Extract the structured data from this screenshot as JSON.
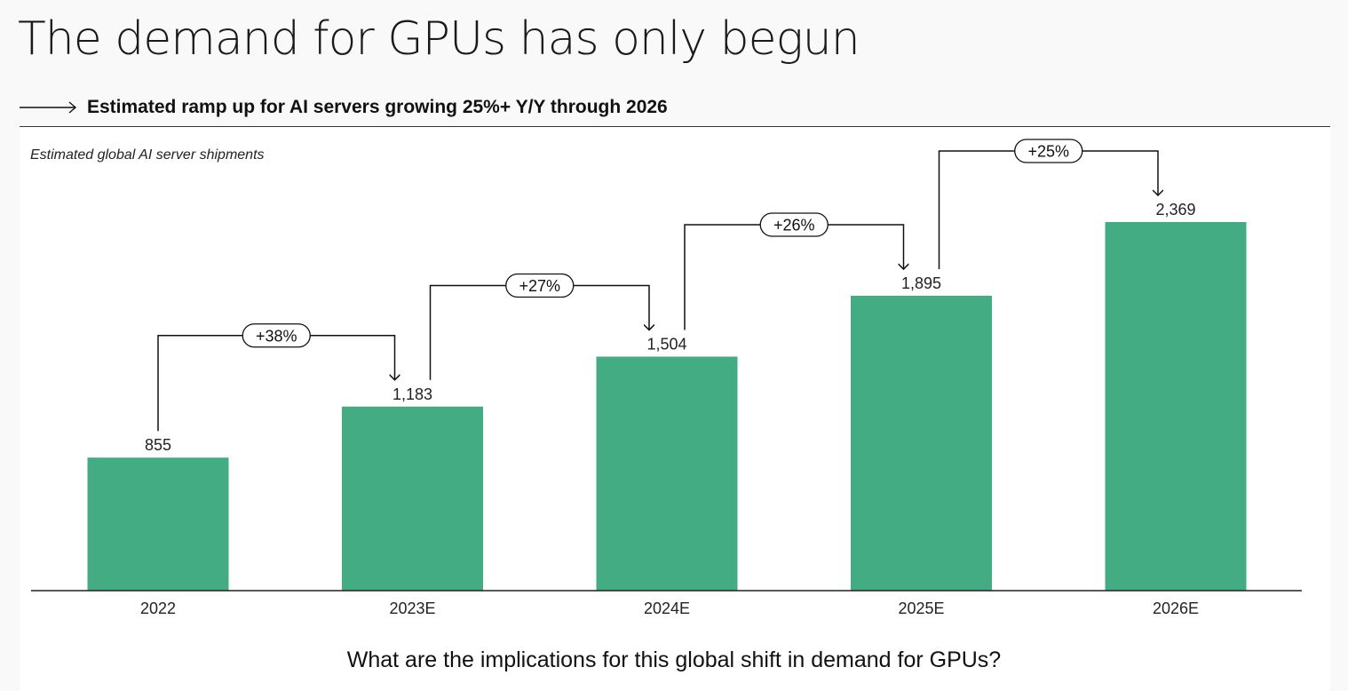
{
  "page": {
    "title": "The demand for GPUs has only begun",
    "subtitle": "Estimated ramp up for AI servers growing 25%+ Y/Y through 2026",
    "question": "What are the implications for this global shift in demand for GPUs?"
  },
  "colors": {
    "bar": "#43ac83",
    "axis": "#222222",
    "connector": "#111111"
  },
  "chart_data": {
    "type": "bar",
    "title": "Estimated global AI server shipments",
    "categories": [
      "2022",
      "2023E",
      "2024E",
      "2025E",
      "2026E"
    ],
    "values": [
      855,
      1183,
      1504,
      1895,
      2369
    ],
    "value_labels": [
      "855",
      "1,183",
      "1,504",
      "1,895",
      "2,369"
    ],
    "growth_labels": [
      "+38%",
      "+27%",
      "+26%",
      "+25%"
    ],
    "ylim": [
      0,
      2369
    ],
    "grid": false,
    "legend": "none"
  }
}
